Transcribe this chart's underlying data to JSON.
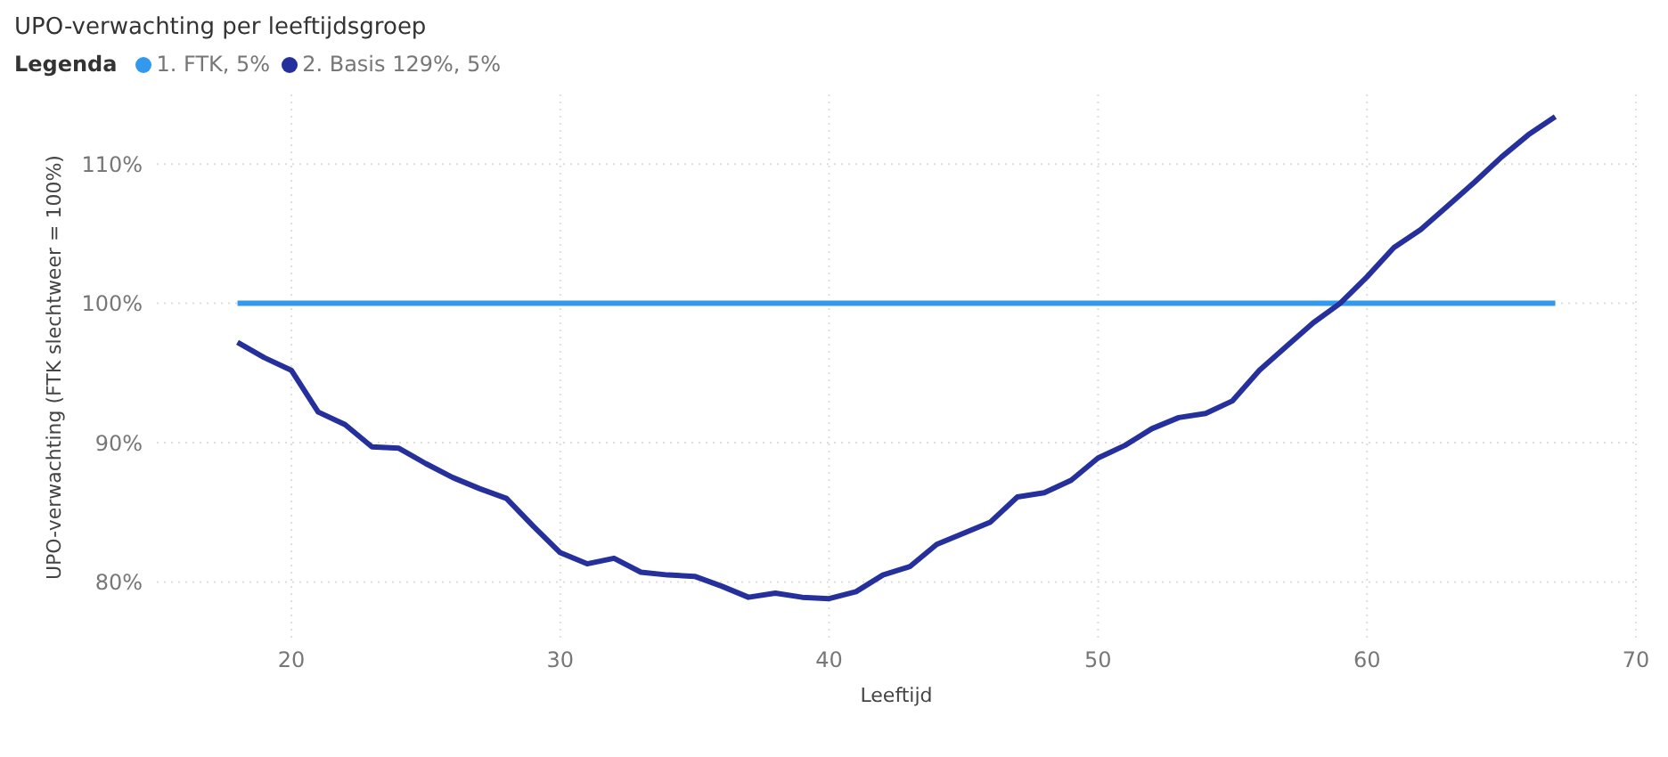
{
  "chart_data": {
    "type": "line",
    "title": "UPO-verwachting per leeftijdsgroep",
    "legend_title": "Legenda",
    "xlabel": "Leeftijd",
    "ylabel": "UPO-verwachting (FTK slechtweer = 100%)",
    "x": [
      18,
      19,
      20,
      21,
      22,
      23,
      24,
      25,
      26,
      27,
      28,
      29,
      30,
      31,
      32,
      33,
      34,
      35,
      36,
      37,
      38,
      39,
      40,
      41,
      42,
      43,
      44,
      45,
      46,
      47,
      48,
      49,
      50,
      51,
      52,
      53,
      54,
      55,
      56,
      57,
      58,
      59,
      60,
      61,
      62,
      63,
      64,
      65,
      66,
      67
    ],
    "series": [
      {
        "name": "1. FTK, 5%",
        "color": "#3399ee",
        "values": [
          100,
          100,
          100,
          100,
          100,
          100,
          100,
          100,
          100,
          100,
          100,
          100,
          100,
          100,
          100,
          100,
          100,
          100,
          100,
          100,
          100,
          100,
          100,
          100,
          100,
          100,
          100,
          100,
          100,
          100,
          100,
          100,
          100,
          100,
          100,
          100,
          100,
          100,
          100,
          100,
          100,
          100,
          100,
          100,
          100,
          100,
          100,
          100,
          100,
          100
        ]
      },
      {
        "name": "2. Basis 129%, 5%",
        "color": "#25309c",
        "values": [
          97.2,
          96.1,
          95.2,
          92.2,
          91.3,
          89.7,
          89.6,
          88.5,
          87.5,
          86.7,
          86.0,
          84.0,
          82.1,
          81.3,
          81.7,
          80.7,
          80.5,
          80.4,
          79.7,
          78.9,
          79.2,
          78.9,
          78.8,
          79.3,
          80.5,
          81.1,
          82.7,
          83.5,
          84.3,
          86.1,
          86.4,
          87.3,
          88.9,
          89.8,
          91.0,
          91.8,
          92.1,
          93.0,
          95.2,
          96.9,
          98.6,
          100.0,
          101.9,
          104.0,
          105.3,
          107.0,
          108.7,
          110.5,
          112.1,
          113.4
        ]
      }
    ],
    "xlim": [
      15,
      70
    ],
    "xticks": [
      20,
      30,
      40,
      50,
      60,
      70
    ],
    "ylim": [
      76,
      115
    ],
    "yticks": [
      {
        "value": 80,
        "label": "80%"
      },
      {
        "value": 90,
        "label": "90%"
      },
      {
        "value": 100,
        "label": "100%"
      },
      {
        "value": 110,
        "label": "110%"
      }
    ],
    "grid": true,
    "legend": "top left",
    "marker": "none",
    "line_style": "solid"
  }
}
